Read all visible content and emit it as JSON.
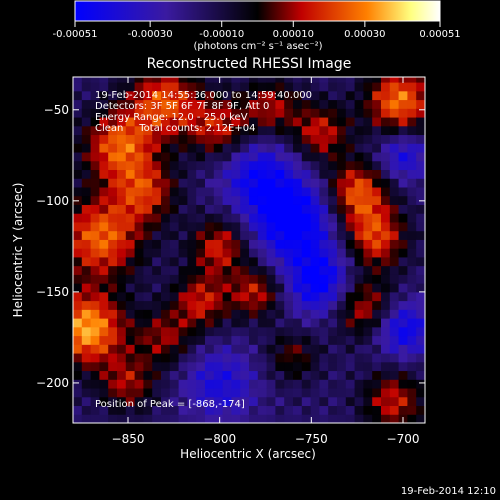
{
  "colorbar": {
    "tick_labels": [
      "-0.00051",
      "-0.00030",
      "-0.00010",
      "0.00010",
      "0.00030",
      "0.00051"
    ],
    "tick_values": [
      -0.00051,
      -0.0003,
      -0.0001,
      0.0001,
      0.0003,
      0.00051
    ],
    "range": [
      -0.00051,
      0.00051
    ],
    "units_label": "(photons cm⁻² s⁻¹ asec⁻²)",
    "colors": [
      "#0000ff",
      "#3a1aa0",
      "#000000",
      "#c00000",
      "#ff8000",
      "#ffff80",
      "#ffffff"
    ]
  },
  "chart_data": {
    "type": "heatmap",
    "title": "Reconstructed RHESSI Image",
    "xlabel": "Heliocentric X (arcsec)",
    "ylabel": "Heliocentric Y (arcsec)",
    "xlim": [
      -880,
      -688
    ],
    "ylim": [
      -222,
      -32
    ],
    "x_ticks": [
      -850,
      -800,
      -750,
      -700
    ],
    "y_ticks": [
      -50,
      -100,
      -150,
      -200
    ],
    "x_tick_labels": [
      "−850",
      "−800",
      "−750",
      "−700"
    ],
    "y_tick_labels": [
      "−50",
      "−100",
      "−150",
      "−200"
    ],
    "annotations": [
      "19-Feb-2014 14:55:36.000 to 14:59:40.000",
      "Detectors: 3F 5F 6F 7F 8F 9F, Att 0",
      "Energy Range: 12.0 - 25.0 keV",
      "Clean     Total counts: 2.12E+04"
    ],
    "peak_label": "Position of Peak = [-868,-174]",
    "peak": [
      -868,
      -174
    ],
    "hotspots": [
      {
        "x": -872,
        "y": -170,
        "v": 0.00051,
        "s": 14
      },
      {
        "x": -865,
        "y": -120,
        "v": 0.00042,
        "s": 16
      },
      {
        "x": -855,
        "y": -70,
        "v": 0.0004,
        "s": 14
      },
      {
        "x": -830,
        "y": -45,
        "v": 0.00038,
        "s": 14
      },
      {
        "x": -840,
        "y": -95,
        "v": 0.0003,
        "s": 12
      },
      {
        "x": -800,
        "y": -60,
        "v": 0.0003,
        "s": 12
      },
      {
        "x": -772,
        "y": -48,
        "v": 0.00026,
        "s": 11
      },
      {
        "x": -745,
        "y": -62,
        "v": 0.0003,
        "s": 11
      },
      {
        "x": -702,
        "y": -45,
        "v": 0.00044,
        "s": 13
      },
      {
        "x": -725,
        "y": -95,
        "v": 0.0004,
        "s": 12
      },
      {
        "x": -715,
        "y": -120,
        "v": 0.00036,
        "s": 12
      },
      {
        "x": -722,
        "y": -158,
        "v": 0.00032,
        "s": 12
      },
      {
        "x": -705,
        "y": -210,
        "v": 0.0003,
        "s": 12
      },
      {
        "x": -800,
        "y": -125,
        "v": 0.00032,
        "s": 11
      },
      {
        "x": -810,
        "y": -155,
        "v": 0.0003,
        "s": 11
      },
      {
        "x": -780,
        "y": -150,
        "v": 0.0003,
        "s": 10
      },
      {
        "x": -830,
        "y": -175,
        "v": 0.00024,
        "s": 11
      },
      {
        "x": -760,
        "y": -185,
        "v": 0.0002,
        "s": 10
      },
      {
        "x": -850,
        "y": -200,
        "v": 0.00026,
        "s": 11
      },
      {
        "x": -760,
        "y": -110,
        "v": -0.00042,
        "s": 16
      },
      {
        "x": -745,
        "y": -145,
        "v": -0.00036,
        "s": 13
      },
      {
        "x": -700,
        "y": -170,
        "v": -0.00032,
        "s": 11
      },
      {
        "x": -780,
        "y": -85,
        "v": -0.00028,
        "s": 14
      },
      {
        "x": -800,
        "y": -200,
        "v": -0.00024,
        "s": 14
      },
      {
        "x": -700,
        "y": -75,
        "v": -0.00026,
        "s": 10
      }
    ]
  },
  "footer": {
    "timestamp": "19-Feb-2014 12:10"
  }
}
